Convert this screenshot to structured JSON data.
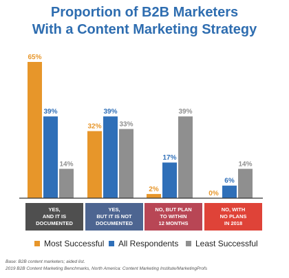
{
  "title_line1": "Proportion of B2B Marketers",
  "title_line2": "With a Content Marketing Strategy",
  "colors": {
    "title": "#2e6db0",
    "most": "#e7962a",
    "all": "#2f6fb8",
    "least": "#8f8f8f",
    "cat1": "#4f4f4f",
    "cat2": "#4d6591",
    "cat3": "#b84655",
    "cat4": "#df4338"
  },
  "chart_data": {
    "type": "bar",
    "categories": [
      "YES, AND IT IS DOCUMENTED",
      "YES, BUT IT IS NOT DOCUMENTED",
      "NO, BUT PLAN TO WITHIN 12 MONTHS",
      "NO, WITH NO PLANS IN 2018"
    ],
    "category_lines": [
      [
        "YES,",
        "AND IT IS",
        "DOCUMENTED"
      ],
      [
        "YES,",
        "BUT IT IS NOT",
        "DOCUMENTED"
      ],
      [
        "NO, BUT PLAN",
        "TO WITHIN",
        "12 MONTHS"
      ],
      [
        "NO, WITH",
        "NO PLANS",
        "IN 2018"
      ]
    ],
    "series": [
      {
        "name": "Most Successful",
        "values": [
          65,
          32,
          2,
          0
        ],
        "labels": [
          "65%",
          "32%",
          "2%",
          "0%"
        ]
      },
      {
        "name": "All Respondents",
        "values": [
          39,
          39,
          17,
          6
        ],
        "labels": [
          "39%",
          "39%",
          "17%",
          "6%"
        ]
      },
      {
        "name": "Least Successful",
        "values": [
          14,
          33,
          39,
          14
        ],
        "labels": [
          "14%",
          "33%",
          "39%",
          "14%"
        ]
      }
    ],
    "ylim": [
      0,
      65
    ],
    "grid": false,
    "legend_position": "bottom"
  },
  "footer_line1": "Base: B2B content marketers; aided list.",
  "footer_line2": "2019 B2B Content Marketing Benchmarks, North America: Content Marketing Institute/MarketingProfs"
}
